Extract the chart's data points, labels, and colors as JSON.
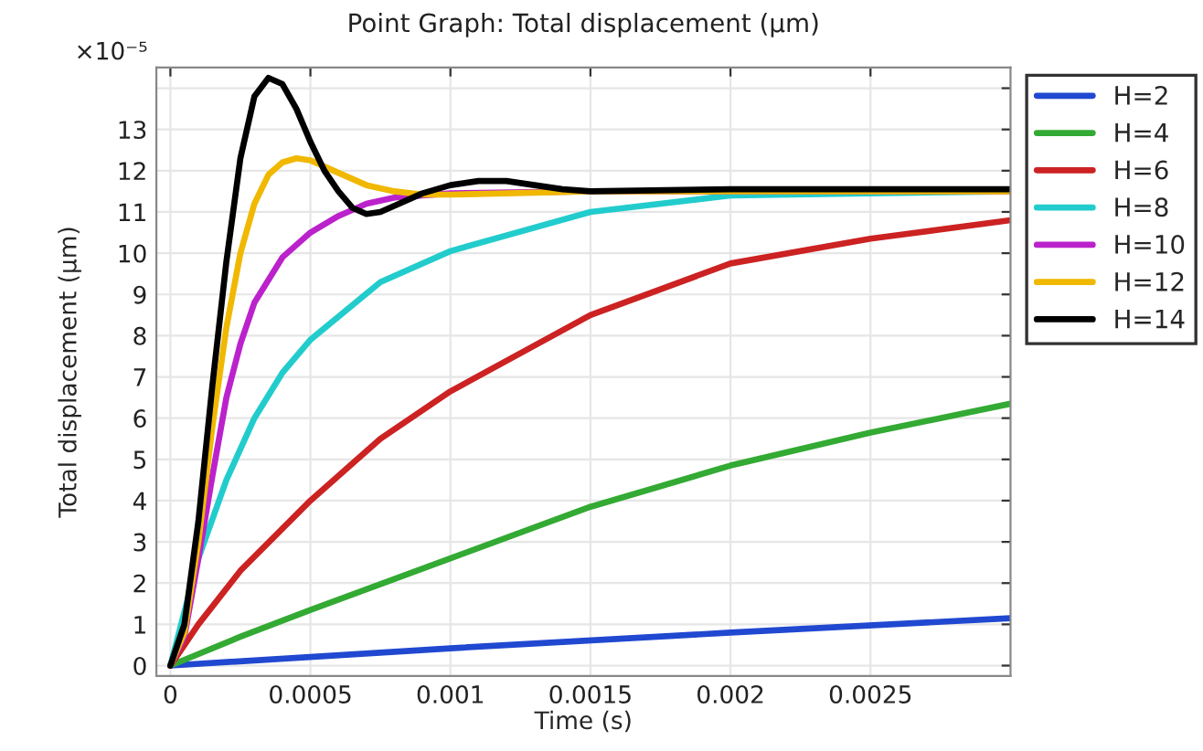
{
  "chart_data": {
    "type": "line",
    "title": "Point Graph: Total displacement (μm)",
    "xlabel": "Time (s)",
    "ylabel": "Total displacement (μm)",
    "annotations": [
      "×10⁻⁵"
    ],
    "xlim": [
      -5e-05,
      0.003
    ],
    "xticks": [
      0,
      0.0005,
      0.001,
      0.0015,
      0.002,
      0.0025
    ],
    "ylim": [
      -0.25,
      14.5
    ],
    "yticks": [
      0,
      1,
      2,
      3,
      4,
      5,
      6,
      7,
      8,
      9,
      10,
      11,
      12,
      13,
      {
        "value": 14,
        "label": null
      }
    ],
    "grid": true,
    "legend": "top right",
    "line_style": "solid",
    "series": [
      {
        "name": "H=2",
        "color": "#2048d0",
        "x": [
          0,
          0.001,
          0.002,
          0.003
        ],
        "values": [
          0,
          0.42,
          0.8,
          1.15
        ]
      },
      {
        "name": "H=4",
        "color": "#33aa33",
        "x": [
          0,
          0.00025,
          0.0005,
          0.001,
          0.0015,
          0.002,
          0.0025,
          0.003
        ],
        "values": [
          0,
          0.7,
          1.35,
          2.6,
          3.85,
          4.85,
          5.65,
          6.35
        ]
      },
      {
        "name": "H=6",
        "color": "#cc2222",
        "x": [
          0,
          0.0001,
          0.00025,
          0.0005,
          0.00075,
          0.001,
          0.0015,
          0.002,
          0.0025,
          0.003
        ],
        "values": [
          0,
          1.0,
          2.3,
          4.0,
          5.5,
          6.65,
          8.5,
          9.75,
          10.35,
          10.8
        ]
      },
      {
        "name": "H=8",
        "color": "#22cccc",
        "x": [
          0,
          0.0001,
          0.0002,
          0.0003,
          0.0004,
          0.0005,
          0.00075,
          0.001,
          0.0015,
          0.002,
          0.003
        ],
        "values": [
          0,
          2.6,
          4.5,
          6.0,
          7.1,
          7.9,
          9.3,
          10.05,
          11.0,
          11.4,
          11.5
        ]
      },
      {
        "name": "H=10",
        "color": "#bb22cc",
        "x": [
          0,
          5e-05,
          0.0001,
          0.00015,
          0.0002,
          0.00025,
          0.0003,
          0.0004,
          0.0005,
          0.0006,
          0.0007,
          0.0008,
          0.001,
          0.0015,
          0.003
        ],
        "values": [
          0,
          0.7,
          2.6,
          4.6,
          6.5,
          7.8,
          8.8,
          9.9,
          10.5,
          10.9,
          11.2,
          11.35,
          11.45,
          11.5,
          11.5
        ]
      },
      {
        "name": "H=12",
        "color": "#f0b800",
        "x": [
          0,
          5e-05,
          0.0001,
          0.00015,
          0.0002,
          0.00025,
          0.0003,
          0.00035,
          0.0004,
          0.00045,
          0.0005,
          0.0006,
          0.0007,
          0.0008,
          0.0009,
          0.001,
          0.0012,
          0.0015,
          0.002,
          0.003
        ],
        "values": [
          0,
          0.8,
          3.0,
          5.8,
          8.2,
          10.0,
          11.2,
          11.9,
          12.2,
          12.3,
          12.25,
          11.95,
          11.65,
          11.5,
          11.42,
          11.42,
          11.45,
          11.5,
          11.5,
          11.5
        ]
      },
      {
        "name": "H=14",
        "color": "#000000",
        "x": [
          0,
          5e-05,
          0.0001,
          0.00015,
          0.0002,
          0.00025,
          0.0003,
          0.00035,
          0.0004,
          0.00045,
          0.0005,
          0.00055,
          0.0006,
          0.00065,
          0.0007,
          0.00075,
          0.0008,
          0.0009,
          0.001,
          0.0011,
          0.0012,
          0.0013,
          0.0014,
          0.0015,
          0.002,
          0.003
        ],
        "values": [
          0,
          1.0,
          3.5,
          6.8,
          9.8,
          12.3,
          13.8,
          14.25,
          14.1,
          13.5,
          12.7,
          12.0,
          11.5,
          11.1,
          10.95,
          11.0,
          11.15,
          11.45,
          11.65,
          11.75,
          11.75,
          11.65,
          11.55,
          11.5,
          11.55,
          11.55
        ]
      }
    ]
  }
}
